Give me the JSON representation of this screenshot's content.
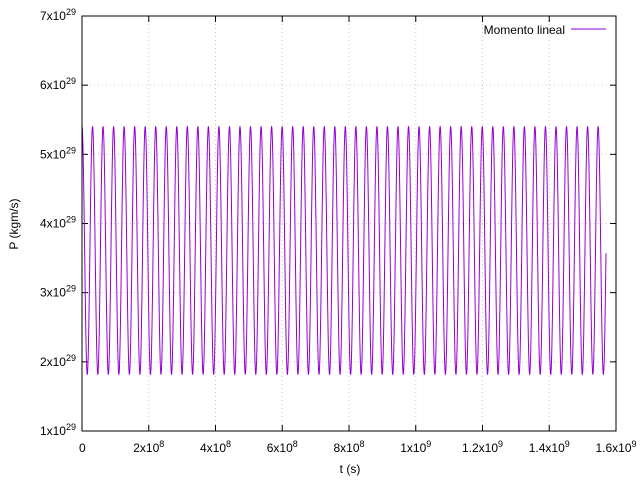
{
  "chart_data": {
    "type": "line",
    "title": "",
    "xlabel": "t (s)",
    "ylabel": "P (kgm/s)",
    "xlim": [
      0,
      1600000000.0
    ],
    "ylim": [
      1e+29,
      7e+29
    ],
    "grid": true,
    "legend_position": "top-right",
    "x_ticks": [
      {
        "value": 0,
        "label": "0",
        "exp": ""
      },
      {
        "value": 200000000.0,
        "label": "2x10",
        "exp": "8"
      },
      {
        "value": 400000000.0,
        "label": "4x10",
        "exp": "8"
      },
      {
        "value": 600000000.0,
        "label": "6x10",
        "exp": "8"
      },
      {
        "value": 800000000.0,
        "label": "8x10",
        "exp": "8"
      },
      {
        "value": 1000000000.0,
        "label": "1x10",
        "exp": "9"
      },
      {
        "value": 1200000000.0,
        "label": "1.2x10",
        "exp": "9"
      },
      {
        "value": 1400000000.0,
        "label": "1.4x10",
        "exp": "9"
      },
      {
        "value": 1600000000.0,
        "label": "1.6x10",
        "exp": "9"
      }
    ],
    "y_ticks": [
      {
        "value": 1e+29,
        "label": "1x10",
        "exp": "29"
      },
      {
        "value": 2e+29,
        "label": "2x10",
        "exp": "29"
      },
      {
        "value": 3e+29,
        "label": "3x10",
        "exp": "29"
      },
      {
        "value": 4e+29,
        "label": "4x10",
        "exp": "29"
      },
      {
        "value": 5e+29,
        "label": "5x10",
        "exp": "29"
      },
      {
        "value": 6e+29,
        "label": "6x10",
        "exp": "29"
      },
      {
        "value": 7e+29,
        "label": "7x10",
        "exp": "29"
      }
    ],
    "series": [
      {
        "name": "Momento lineal",
        "color": "#9400d3",
        "t_start": 0,
        "t_end": 1570000000.0,
        "period": 31560000.0,
        "max": 5.4e+29,
        "min": 1.82e+29
      }
    ]
  }
}
